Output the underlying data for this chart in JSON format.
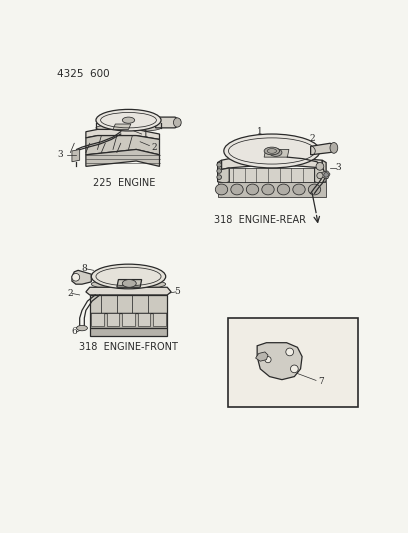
{
  "title": "4325  600",
  "background_color": "#f5f5f0",
  "line_color": "#2a2a2a",
  "text_color": "#2a2a2a",
  "diagram1_label": "225  ENGINE",
  "diagram2_label": "318  ENGINE-REAR",
  "diagram3_label": "318  ENGINE-FRONT",
  "fig_width": 4.08,
  "fig_height": 5.33,
  "dpi": 100
}
